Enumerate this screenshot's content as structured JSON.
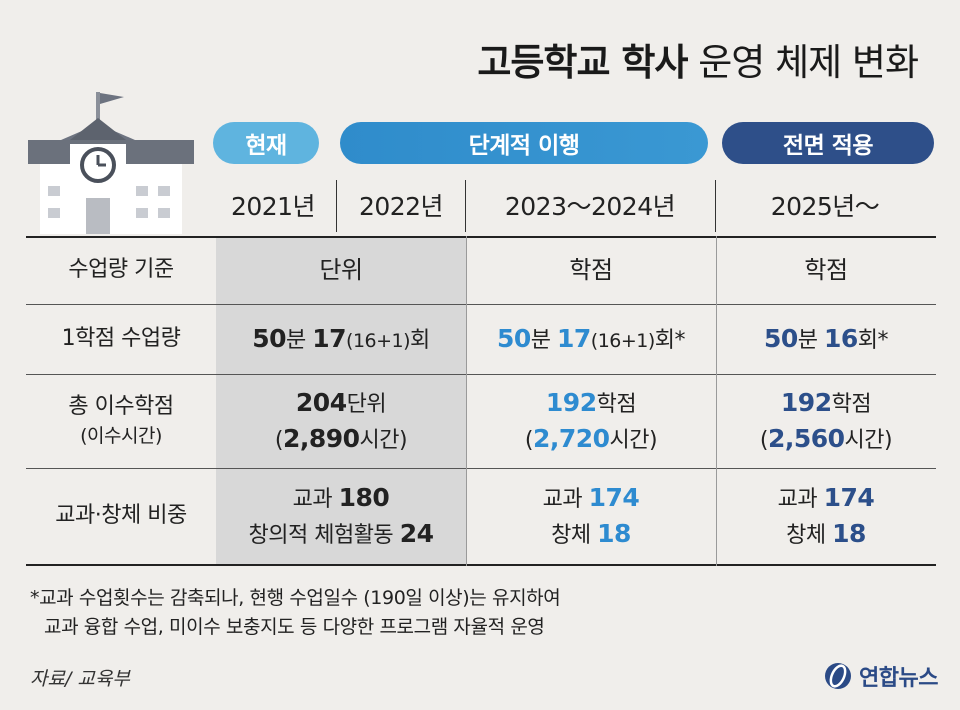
{
  "title": {
    "bold": "고등학교 학사",
    "normal": "운영 체제 변화"
  },
  "phases": {
    "current": "현재",
    "phased": "단계적 이행",
    "full": "전면 적용"
  },
  "years": {
    "y2021": "2021년",
    "y2022": "2022년",
    "y2023": "2023～2024년",
    "y2025": "2025년～"
  },
  "rows": {
    "basis": {
      "label": "수업량 기준",
      "current": "단위",
      "phased": "학점",
      "full": "학점"
    },
    "per_credit": {
      "label": "1학점 수업량",
      "current": {
        "min": "50",
        "min_unit": "분",
        "count": "17",
        "breakdown": "(16+1)",
        "suffix": "회"
      },
      "phased": {
        "min": "50",
        "min_unit": "분",
        "count": "17",
        "breakdown": "(16+1)",
        "suffix": "회*"
      },
      "full": {
        "min": "50",
        "min_unit": "분",
        "count": "16",
        "suffix": "회*"
      }
    },
    "total": {
      "label": "총 이수학점",
      "sublabel": "(이수시간)",
      "current": {
        "value": "204",
        "unit": "단위",
        "hours_open": "(",
        "hours": "2,890",
        "hours_unit": "시간)"
      },
      "phased": {
        "value": "192",
        "unit": "학점",
        "hours_open": "(",
        "hours": "2,720",
        "hours_unit": "시간)"
      },
      "full": {
        "value": "192",
        "unit": "학점",
        "hours_open": "(",
        "hours": "2,560",
        "hours_unit": "시간)"
      }
    },
    "ratio": {
      "label": "교과·창체 비중",
      "current": {
        "subject_label": "교과",
        "subject": "180",
        "activity_label": "창의적 체험활동",
        "activity": "24"
      },
      "phased": {
        "subject_label": "교과",
        "subject": "174",
        "activity_label": "창체",
        "activity": "18"
      },
      "full": {
        "subject_label": "교과",
        "subject": "174",
        "activity_label": "창체",
        "activity": "18"
      }
    }
  },
  "note": {
    "line1": "*교과 수업횟수는 감축되나, 현행 수업일수 (190일 이상)는 유지하여",
    "line2": "교과 융합 수업, 미이수 보충지도 등 다양한 프로그램 자율적 운영"
  },
  "source": "자료/ 교육부",
  "logo": {
    "icon": "yonhap-logo-icon",
    "text": "연합뉴스"
  },
  "colors": {
    "background": "#f0eeeb",
    "current": "#5fb4df",
    "phased": "#2f8ccb",
    "full": "#2e4f89",
    "highlight_blue": "#2e8bd0",
    "highlight_navy": "#2c4f8a",
    "shade": "#d8d8d8"
  }
}
